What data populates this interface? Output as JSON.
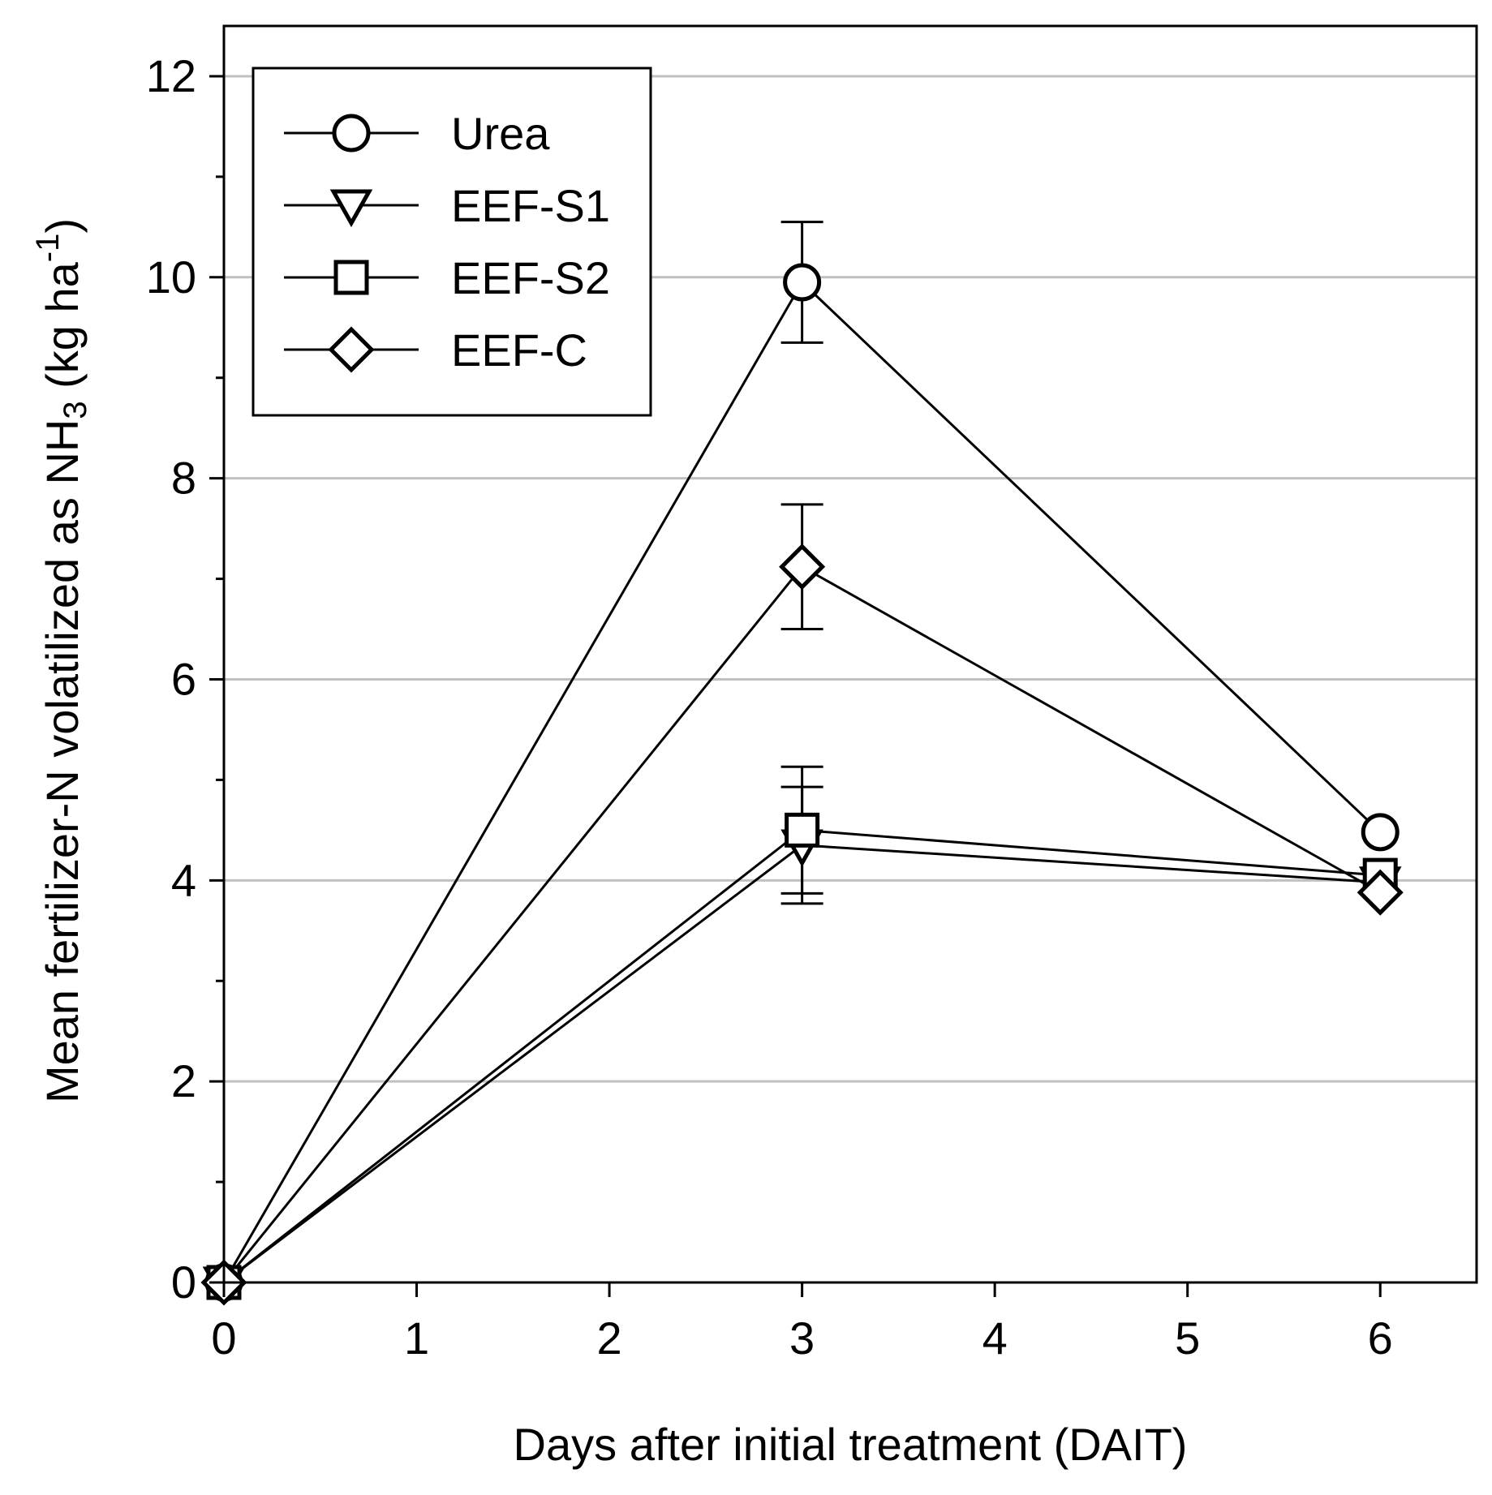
{
  "chart_data": {
    "type": "line",
    "title": "",
    "xlabel": "Days after initial treatment (DAIT)",
    "ylabel": {
      "main": "Mean fertilizer-N volatilized as NH",
      "sub": "3",
      "unit_open": " (kg ha",
      "sup": "-1",
      "unit_close": ")"
    },
    "xlim": [
      0,
      6.5
    ],
    "ylim": [
      0,
      12.5
    ],
    "xticks": [
      0,
      1,
      2,
      3,
      4,
      5,
      6
    ],
    "yticks_major": [
      0,
      2,
      4,
      6,
      8,
      10,
      12
    ],
    "yticks_minor": [
      1,
      3,
      5,
      7,
      9,
      11
    ],
    "gridlines_y": [
      2,
      4,
      6,
      8,
      10,
      12
    ],
    "legend_position": "top-left",
    "series": [
      {
        "name": "Urea",
        "marker": "circle",
        "x": [
          0,
          3,
          6
        ],
        "y": [
          0,
          9.95,
          4.48
        ],
        "err": [
          0,
          0.6,
          0
        ]
      },
      {
        "name": "EEF-S1",
        "marker": "triangle-down",
        "x": [
          0,
          3,
          6
        ],
        "y": [
          0,
          4.35,
          3.98
        ],
        "err": [
          0,
          0.58,
          0
        ]
      },
      {
        "name": "EEF-S2",
        "marker": "square",
        "x": [
          0,
          3,
          6
        ],
        "y": [
          0,
          4.5,
          4.05
        ],
        "err": [
          0,
          0.63,
          0
        ]
      },
      {
        "name": "EEF-C",
        "marker": "diamond",
        "x": [
          0,
          3,
          6
        ],
        "y": [
          0,
          7.12,
          3.88
        ],
        "err": [
          0,
          0.62,
          0
        ]
      }
    ]
  },
  "colors": {
    "line": "#000000",
    "grid": "#c0c0c0",
    "background": "#ffffff"
  }
}
